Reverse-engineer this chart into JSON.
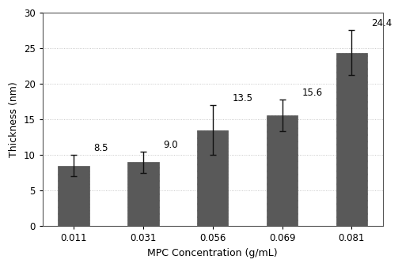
{
  "categories": [
    "0.011",
    "0.031",
    "0.056",
    "0.069",
    "0.081"
  ],
  "values": [
    8.5,
    9.0,
    13.5,
    15.6,
    24.4
  ],
  "errors": [
    1.5,
    1.5,
    3.5,
    2.2,
    3.2
  ],
  "bar_color": "#595959",
  "bar_hatch": "....",
  "bar_edgecolor": "#595959",
  "error_capsize": 3,
  "error_color": "#111111",
  "xlabel": "MPC Concentration (g/mL)",
  "ylabel": "Thickness (nm)",
  "ylim": [
    0,
    30
  ],
  "yticks": [
    0,
    5,
    10,
    15,
    20,
    25,
    30
  ],
  "label_fontsize": 9,
  "tick_fontsize": 8.5,
  "annotation_fontsize": 8.5,
  "background_color": "#ffffff",
  "figure_bg": "#ffffff",
  "bar_width": 0.45,
  "grid_color": "#bbbbbb",
  "grid_linestyle": ":"
}
